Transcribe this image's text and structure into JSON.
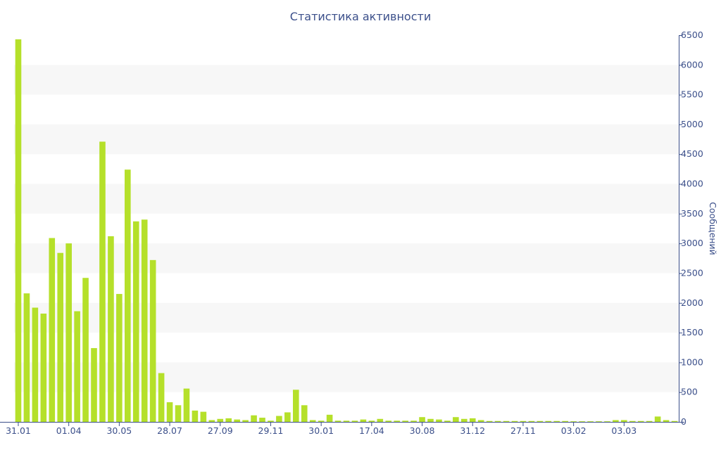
{
  "chart_data": {
    "type": "bar",
    "title": "Статистика активности",
    "ylabel": "Сообщений",
    "ylim": [
      0,
      6500
    ],
    "y_ticks": [
      0,
      500,
      1000,
      1500,
      2000,
      2500,
      3000,
      3500,
      4000,
      4500,
      5000,
      5500,
      6000,
      6500
    ],
    "y_axis_side": "right",
    "grid": "alternating horizontal bands",
    "x_tick_labels": [
      "31.01",
      "01.04",
      "30.05",
      "28.07",
      "27.09",
      "29.11",
      "30.01",
      "17.04",
      "30.08",
      "31.12",
      "27.11",
      "03.02",
      "03.03"
    ],
    "x_tick_bar_indices": [
      0,
      6,
      12,
      18,
      24,
      30,
      36,
      42,
      48,
      54,
      60,
      66,
      72
    ],
    "values": [
      6430,
      2160,
      1920,
      1820,
      3090,
      2840,
      3000,
      1860,
      2420,
      1240,
      4710,
      3120,
      2150,
      4240,
      3370,
      3400,
      2720,
      820,
      330,
      280,
      560,
      190,
      170,
      30,
      50,
      60,
      40,
      30,
      110,
      70,
      20,
      100,
      160,
      540,
      280,
      30,
      20,
      120,
      20,
      20,
      20,
      40,
      20,
      50,
      20,
      20,
      20,
      20,
      80,
      50,
      40,
      20,
      80,
      50,
      60,
      30,
      15,
      15,
      15,
      15,
      15,
      15,
      15,
      15,
      15,
      15,
      10,
      10,
      10,
      10,
      10,
      30,
      30,
      15,
      15,
      15,
      90,
      30,
      15
    ],
    "colors": {
      "bar": "#b5e02a",
      "band": "#f7f7f7",
      "axis": "#3b4f8a",
      "text": "#3b4f8a"
    }
  }
}
